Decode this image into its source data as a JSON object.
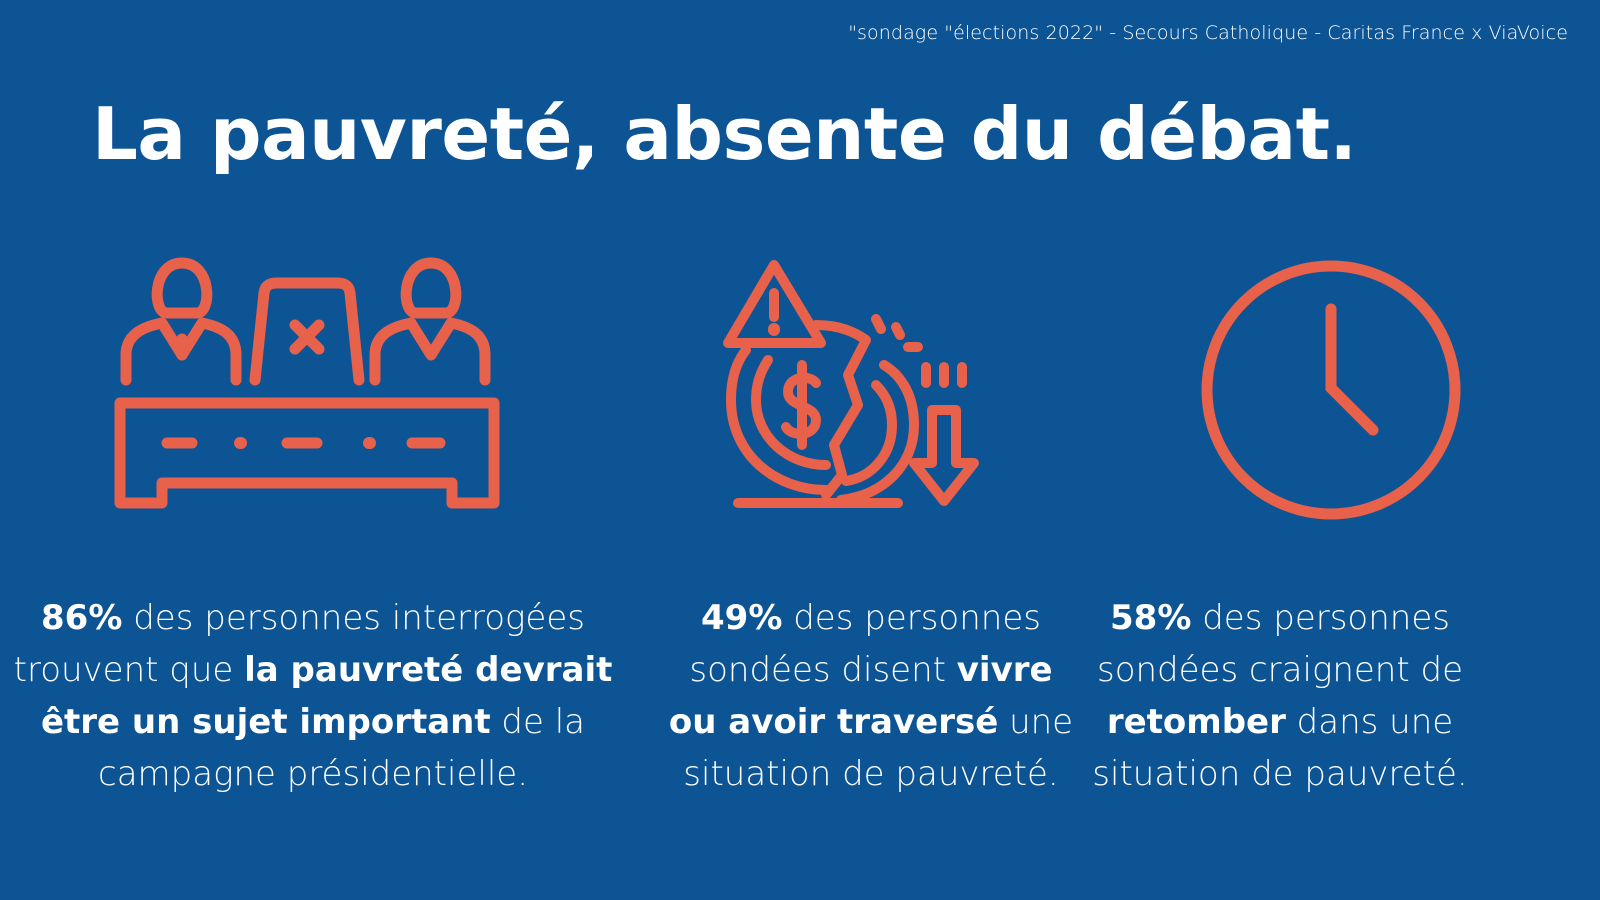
{
  "source": "\"sondage \"élections 2022\" - Secours Catholique - Caritas France x ViaVoice",
  "title": "La pauvreté, absente du débat.",
  "colors": {
    "background": "#0d5495",
    "accent": "#e8614a",
    "text": "#ffffff"
  },
  "icons": [
    "debate-panel-icon",
    "money-crisis-icon",
    "clock-icon"
  ],
  "stats": [
    {
      "percent": "86%",
      "t1": " des personnes interrogées trouvent que ",
      "b1": "la pauvreté devrait être un sujet important",
      "t2": " de la campagne présidentielle."
    },
    {
      "percent": "49%",
      "t1": " des personnes sondées disent ",
      "b1": "vivre ou avoir traversé",
      "t2": " une situation de pauvreté."
    },
    {
      "percent": "58%",
      "t1": " des personnes sondées craignent de ",
      "b1": "retomber",
      "t2": " dans une situation de pauvreté."
    }
  ]
}
